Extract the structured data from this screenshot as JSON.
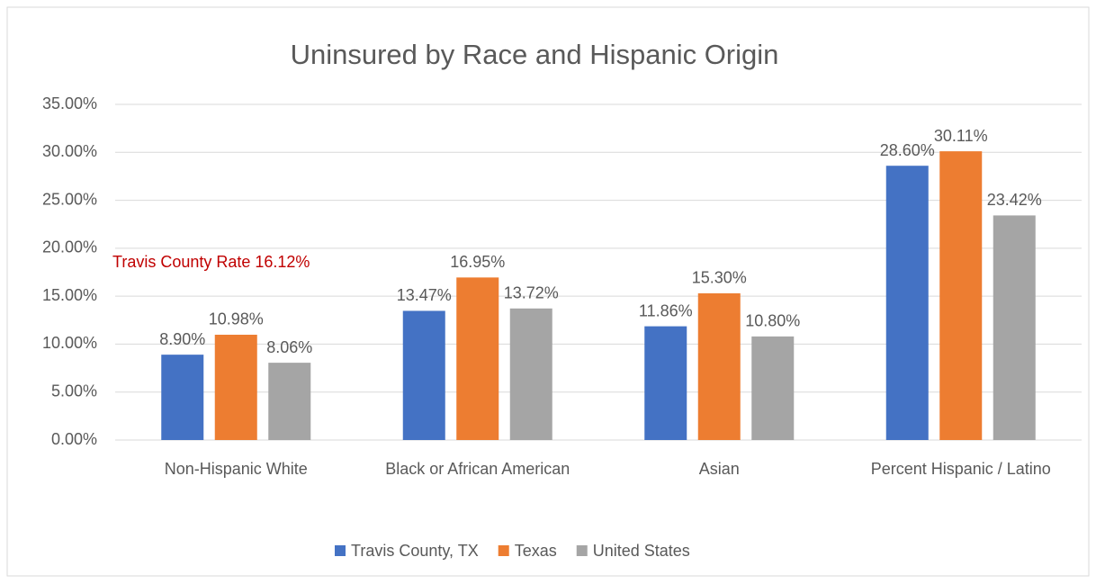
{
  "chart_data": {
    "type": "bar",
    "title": "Uninsured by Race and Hispanic Origin",
    "annotation": "Travis County Rate 16.12%",
    "categories": [
      "Non-Hispanic White",
      "Black or African American",
      "Asian",
      "Percent Hispanic / Latino"
    ],
    "series": [
      {
        "name": "Travis County, TX",
        "color": "#4472c4",
        "values": [
          8.9,
          13.47,
          11.86,
          28.6
        ],
        "value_labels": [
          "8.90%",
          "13.47%",
          "11.86%",
          "28.60%"
        ]
      },
      {
        "name": "Texas",
        "color": "#ed7d31",
        "values": [
          10.98,
          16.95,
          15.3,
          30.11
        ],
        "value_labels": [
          "10.98%",
          "16.95%",
          "15.30%",
          "30.11%"
        ]
      },
      {
        "name": "United States",
        "color": "#a5a5a5",
        "values": [
          8.06,
          13.72,
          10.8,
          23.42
        ],
        "value_labels": [
          "8.06%",
          "13.72%",
          "10.80%",
          "23.42%"
        ]
      }
    ],
    "ylim": [
      0,
      35
    ],
    "yticks": [
      {
        "value": 0,
        "label": "0.00%"
      },
      {
        "value": 5,
        "label": "5.00%"
      },
      {
        "value": 10,
        "label": "10.00%"
      },
      {
        "value": 15,
        "label": "15.00%"
      },
      {
        "value": 20,
        "label": "20.00%"
      },
      {
        "value": 25,
        "label": "25.00%"
      },
      {
        "value": 30,
        "label": "30.00%"
      },
      {
        "value": 35,
        "label": "35.00%"
      }
    ],
    "grid": true,
    "legend": "bottom"
  }
}
